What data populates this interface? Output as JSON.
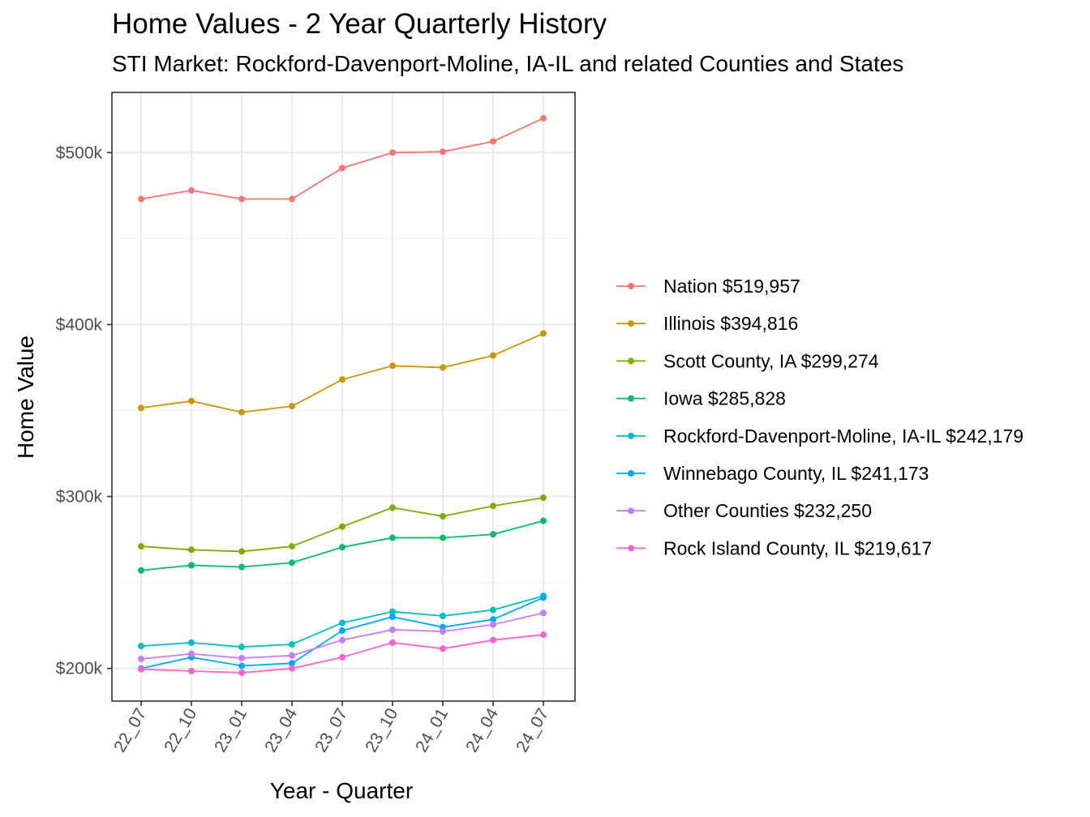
{
  "chart_data": {
    "type": "line",
    "title": "Home Values - 2 Year Quarterly History",
    "subtitle": "STI Market: Rockford-Davenport-Moline, IA-IL and related Counties and States",
    "xlabel": "Year - Quarter",
    "ylabel": "Home Value",
    "x": [
      "22_07",
      "22_10",
      "23_01",
      "23_04",
      "23_07",
      "23_10",
      "24_01",
      "24_04",
      "24_07"
    ],
    "yticks": [
      200000,
      300000,
      400000,
      500000
    ],
    "ytick_labels": [
      "$200k",
      "$300k",
      "$400k",
      "$500k"
    ],
    "ylim": [
      181000,
      535000
    ],
    "grid": true,
    "legend_position": "right",
    "series": [
      {
        "name": "Nation $519,957",
        "color": "#F8766D",
        "values": [
          473000,
          478000,
          473000,
          473000,
          491000,
          500000,
          500500,
          506500,
          519957
        ]
      },
      {
        "name": "Illinois $394,816",
        "color": "#CD9600",
        "values": [
          351500,
          355500,
          349000,
          352500,
          368000,
          376000,
          375000,
          382000,
          394816
        ]
      },
      {
        "name": "Scott County, IA $299,274",
        "color": "#7CAE00",
        "values": [
          271000,
          269000,
          268000,
          271000,
          282500,
          293500,
          288500,
          294500,
          299274
        ]
      },
      {
        "name": "Iowa $285,828",
        "color": "#00BE67",
        "values": [
          257000,
          260000,
          259000,
          261500,
          270500,
          276000,
          276000,
          278000,
          285828
        ]
      },
      {
        "name": "Rockford-Davenport-Moline, IA-IL $242,179",
        "color": "#00BFC4",
        "values": [
          213000,
          215000,
          212500,
          214000,
          226500,
          233000,
          230500,
          234000,
          242179
        ]
      },
      {
        "name": "Winnebago County, IL $241,173",
        "color": "#00A9FF",
        "values": [
          200000,
          206500,
          201500,
          203000,
          222000,
          230000,
          224000,
          228500,
          241173
        ]
      },
      {
        "name": "Other Counties $232,250",
        "color": "#C77CFF",
        "values": [
          205500,
          208500,
          206000,
          207500,
          216500,
          222500,
          221500,
          225500,
          232250
        ]
      },
      {
        "name": "Rock Island County, IL $219,617",
        "color": "#FF61CC",
        "values": [
          199500,
          198500,
          197500,
          200000,
          206500,
          215000,
          211500,
          216500,
          219617
        ]
      }
    ]
  }
}
